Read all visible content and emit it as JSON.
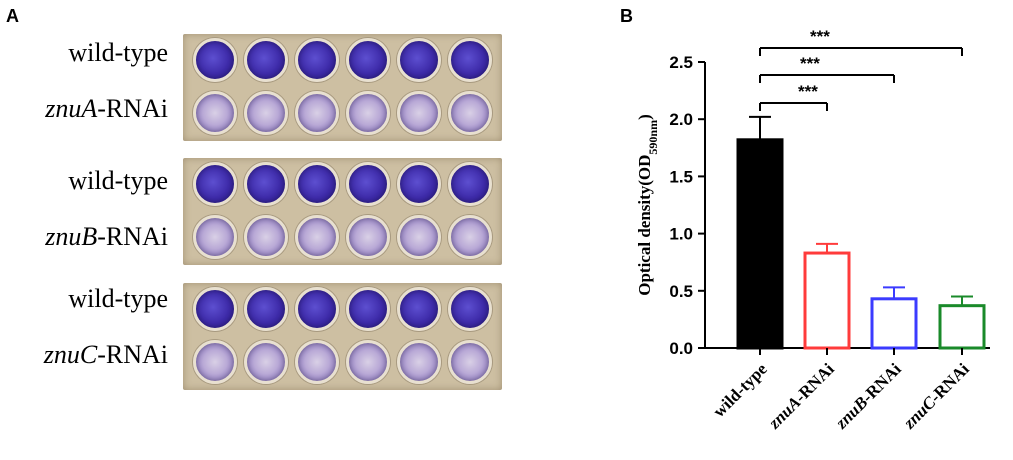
{
  "panels": {
    "a_letter": "A",
    "b_letter": "B"
  },
  "plate_rows": [
    {
      "gene": "",
      "suffix": "wild-type",
      "type": "wt"
    },
    {
      "gene": "znuA",
      "suffix": "-RNAi",
      "type": "rnai"
    },
    {
      "gene": "",
      "suffix": "wild-type",
      "type": "wt"
    },
    {
      "gene": "znuB",
      "suffix": "-RNAi",
      "type": "rnai"
    },
    {
      "gene": "",
      "suffix": "wild-type",
      "type": "wt"
    },
    {
      "gene": "znuC",
      "suffix": "-RNAi",
      "type": "rnai"
    }
  ],
  "colors": {
    "wild_type": "#000000",
    "znuA": "#ff3b3b",
    "znuB": "#3b3bff",
    "znuC": "#1a8a2a"
  },
  "chart_data": {
    "type": "bar",
    "ylabel": "Optical density(OD590nm)",
    "ylabel_main": "Optical density(OD",
    "ylabel_sub": "590nm",
    "ylabel_close": ")",
    "ylim": [
      0,
      2.5
    ],
    "yticks": [
      0.0,
      0.5,
      1.0,
      1.5,
      2.0,
      2.5
    ],
    "ytick_labels": [
      "0.0",
      "0.5",
      "1.0",
      "1.5",
      "2.0",
      "2.5"
    ],
    "categories": [
      "wild-type",
      "znuA-RNAi",
      "znuB-RNAi",
      "znuC-RNAi"
    ],
    "category_parts": [
      {
        "gene": "",
        "suffix": "wild-type"
      },
      {
        "gene": "znuA",
        "suffix": "-RNAi"
      },
      {
        "gene": "znuB",
        "suffix": "-RNAi"
      },
      {
        "gene": "znuC",
        "suffix": "-RNAi"
      }
    ],
    "values": [
      1.82,
      0.83,
      0.43,
      0.37
    ],
    "errors": [
      0.2,
      0.08,
      0.1,
      0.08
    ],
    "bar_colors": [
      "#000000",
      "#ff3b3b",
      "#3b3bff",
      "#1a8a2a"
    ],
    "bar_fills": [
      "#000000",
      "#ffffff",
      "#ffffff",
      "#ffffff"
    ],
    "significance": [
      {
        "from": 0,
        "to": 1,
        "label": "***"
      },
      {
        "from": 0,
        "to": 2,
        "label": "***"
      },
      {
        "from": 0,
        "to": 3,
        "label": "***"
      }
    ]
  }
}
